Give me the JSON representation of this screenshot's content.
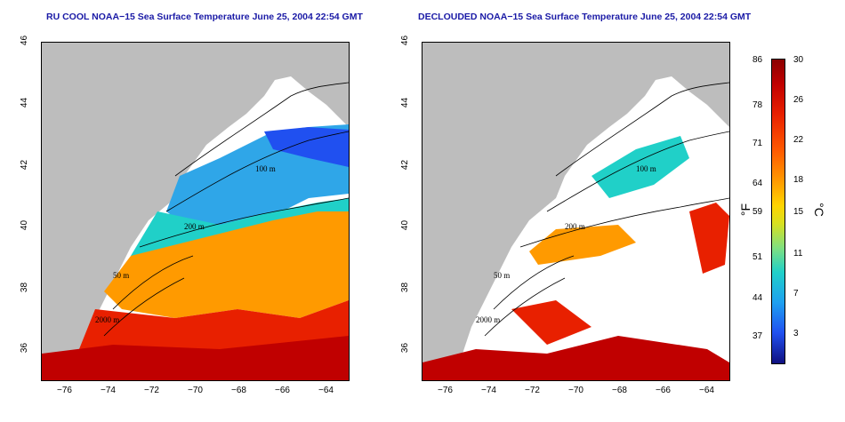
{
  "left_panel": {
    "title": "RU COOL NOAA−15 Sea Surface Temperature June 25, 2004 22:54 GMT"
  },
  "right_panel": {
    "title": "DECLOUDED NOAA−15 Sea Surface Temperature June 25, 2004 22:54 GMT"
  },
  "axes": {
    "x_ticks": [
      "−76",
      "−74",
      "−72",
      "−70",
      "−68",
      "−66",
      "−64"
    ],
    "y_ticks": [
      "46",
      "44",
      "42",
      "40",
      "38",
      "36"
    ]
  },
  "contour_labels": {
    "m100": "100 m",
    "m200": "200 m",
    "m50": "50 m",
    "m2000": "2000 m"
  },
  "colorbar": {
    "fahrenheit_label": "°F",
    "celsius_label": "°C",
    "fahrenheit_ticks": [
      "86",
      "78",
      "71",
      "64",
      "59",
      "51",
      "44",
      "37"
    ],
    "celsius_ticks": [
      "30",
      "26",
      "22",
      "18",
      "15",
      "11",
      "7",
      "3"
    ],
    "colors": [
      "#8b0000",
      "#e82000",
      "#ff9a00",
      "#ffd400",
      "#80e080",
      "#20d0c8",
      "#2050f0",
      "#101080"
    ]
  },
  "colors": {
    "land": "#bdbdbd",
    "title": "#1a1aa6"
  }
}
